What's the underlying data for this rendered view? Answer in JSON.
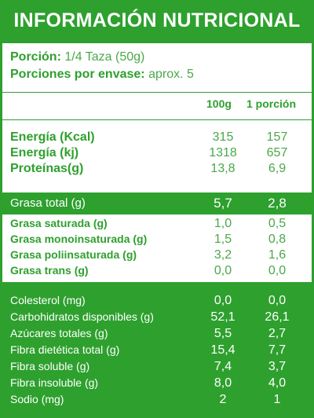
{
  "title": "INFORMACIÓN NUTRICIONAL",
  "serving": {
    "portion_label": "Porción:",
    "portion_value": "1/4 Taza (50g)",
    "per_pack_label": "Porciones por envase:",
    "per_pack_value": "aprox. 5"
  },
  "columns": [
    "100g",
    "1 porción"
  ],
  "energy_rows": [
    {
      "label": "Energía (Kcal)",
      "v100": "315",
      "vport": "157"
    },
    {
      "label": "Energía (kj)",
      "v100": "1318",
      "vport": "657"
    },
    {
      "label": "Proteínas(g)",
      "v100": "13,8",
      "vport": "6,9"
    }
  ],
  "grasa_total": {
    "label": "Grasa total (g)",
    "v100": "5,7",
    "vport": "2,8"
  },
  "grasa_rows": [
    {
      "label": "Grasa saturada (g)",
      "v100": "1,0",
      "vport": "0,5"
    },
    {
      "label": "Grasa monoinsaturada (g)",
      "v100": "1,5",
      "vport": "0,8"
    },
    {
      "label": "Grasa poliinsaturada (g)",
      "v100": "3,2",
      "vport": "1,6"
    },
    {
      "label": "Grasa trans (g)",
      "v100": "0,0",
      "vport": "0,0"
    }
  ],
  "bottom_rows": [
    {
      "label": "Colesterol (mg)",
      "v100": "0,0",
      "vport": "0,0"
    },
    {
      "label": "Carbohidratos disponibles (g)",
      "v100": "52,1",
      "vport": "26,1"
    },
    {
      "label": "Azúcares totales (g)",
      "v100": "5,5",
      "vport": "2,7"
    },
    {
      "label": "Fibra dietética total (g)",
      "v100": "15,4",
      "vport": "7,7"
    },
    {
      "label": "Fibra soluble (g)",
      "v100": "7,4",
      "vport": "3,7"
    },
    {
      "label": "Fibra insoluble (g)",
      "v100": "8,0",
      "vport": "4,0"
    },
    {
      "label": "Sodio (mg)",
      "v100": "2",
      "vport": "1"
    }
  ],
  "colors": {
    "green": "#2ea02e",
    "white": "#ffffff"
  }
}
